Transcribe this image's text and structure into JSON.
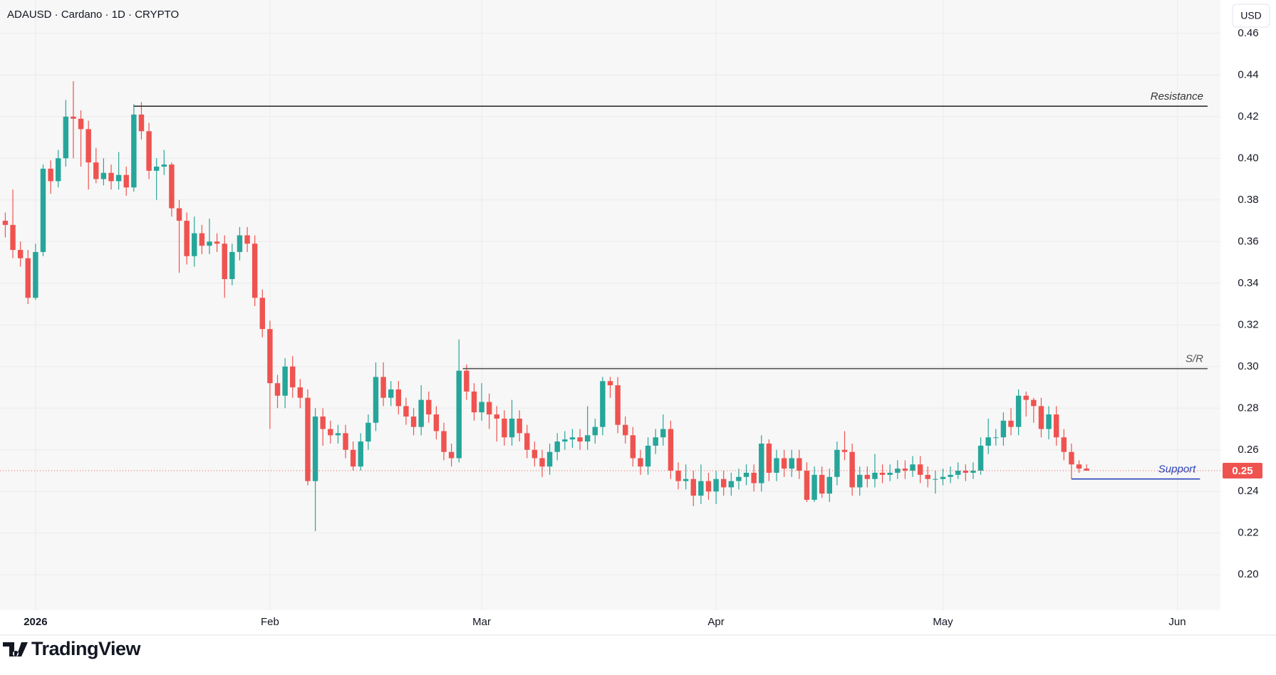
{
  "chart_data": {
    "type": "candlestick",
    "title": "ADAUSD · Cardano · 1D · CRYPTO",
    "currency": "USD",
    "brand": "TradingView",
    "up_color": "#26a69a",
    "down_color": "#ef5350",
    "grid": true,
    "xlim": [
      -4.7,
      156.7
    ],
    "xticks": [
      {
        "value": 0,
        "label": "2026"
      },
      {
        "value": 31,
        "label": "Feb"
      },
      {
        "value": 59,
        "label": "Mar"
      },
      {
        "value": 90,
        "label": "Apr"
      },
      {
        "value": 120,
        "label": "May"
      },
      {
        "value": 151,
        "label": "Jun"
      }
    ],
    "ylim": [
      0.183,
      0.476
    ],
    "yticks": [
      {
        "value": 0.2,
        "label": "0.20"
      },
      0.22,
      0.24,
      0.26,
      0.28,
      {
        "value": 0.3,
        "label": "0.30"
      },
      0.32,
      0.34,
      0.36,
      0.38,
      {
        "value": 0.4,
        "label": "0.40"
      },
      0.42,
      0.44,
      0.46
    ],
    "last_price": 0.25,
    "x": [
      -4,
      -3,
      -2,
      -1,
      0,
      1,
      2,
      3,
      4,
      5,
      6,
      7,
      8,
      9,
      10,
      11,
      12,
      13,
      14,
      15,
      16,
      17,
      18,
      19,
      20,
      21,
      22,
      23,
      24,
      25,
      26,
      27,
      28,
      29,
      30,
      31,
      32,
      33,
      34,
      35,
      36,
      37,
      38,
      39,
      40,
      41,
      42,
      43,
      44,
      45,
      46,
      47,
      48,
      49,
      50,
      51,
      52,
      53,
      54,
      55,
      56,
      57,
      58,
      59,
      60,
      61,
      62,
      63,
      64,
      65,
      66,
      67,
      68,
      69,
      70,
      71,
      72,
      73,
      74,
      75,
      76,
      77,
      78,
      79,
      80,
      81,
      82,
      83,
      84,
      85,
      86,
      87,
      88,
      89,
      90,
      91,
      92,
      93,
      94,
      95,
      96,
      97,
      98,
      99,
      100,
      101,
      102,
      103,
      104,
      105,
      106,
      107,
      108,
      109,
      110,
      111,
      112,
      113,
      114,
      115,
      116,
      117,
      118,
      119,
      120,
      121,
      122,
      123,
      124,
      125,
      126,
      127,
      128,
      129,
      130,
      131,
      132,
      133,
      134,
      135,
      136,
      137,
      138,
      139
    ],
    "open": [
      0.37,
      0.368,
      0.356,
      0.352,
      0.333,
      0.355,
      0.395,
      0.389,
      0.4,
      0.42,
      0.419,
      0.414,
      0.398,
      0.39,
      0.393,
      0.389,
      0.392,
      0.386,
      0.421,
      0.413,
      0.394,
      0.396,
      0.397,
      0.376,
      0.37,
      0.353,
      0.364,
      0.358,
      0.36,
      0.359,
      0.342,
      0.355,
      0.363,
      0.359,
      0.333,
      0.318,
      0.292,
      0.286,
      0.3,
      0.29,
      0.285,
      0.245,
      0.276,
      0.27,
      0.267,
      0.268,
      0.26,
      0.252,
      0.264,
      0.273,
      0.295,
      0.285,
      0.289,
      0.281,
      0.276,
      0.271,
      0.284,
      0.277,
      0.269,
      0.259,
      0.256,
      0.298,
      0.288,
      0.278,
      0.283,
      0.277,
      0.275,
      0.266,
      0.275,
      0.268,
      0.26,
      0.256,
      0.252,
      0.259,
      0.264,
      0.265,
      0.266,
      0.264,
      0.267,
      0.271,
      0.293,
      0.291,
      0.272,
      0.267,
      0.256,
      0.252,
      0.262,
      0.266,
      0.27,
      0.25,
      0.245,
      0.246,
      0.238,
      0.245,
      0.24,
      0.246,
      0.242,
      0.245,
      0.247,
      0.249,
      0.244,
      0.263,
      0.249,
      0.256,
      0.251,
      0.256,
      0.25,
      0.236,
      0.248,
      0.239,
      0.247,
      0.26,
      0.259,
      0.242,
      0.248,
      0.246,
      0.249,
      0.248,
      0.249,
      0.251,
      0.25,
      0.253,
      0.248,
      0.246,
      0.246,
      0.247,
      0.248,
      0.25,
      0.249,
      0.25,
      0.262,
      0.266,
      0.266,
      0.274,
      0.271,
      0.286,
      0.284,
      0.281,
      0.27,
      0.277,
      0.266,
      0.259,
      0.253,
      0.251
    ],
    "high": [
      0.374,
      0.385,
      0.36,
      0.356,
      0.359,
      0.397,
      0.399,
      0.404,
      0.428,
      0.437,
      0.423,
      0.418,
      0.405,
      0.4,
      0.397,
      0.403,
      0.396,
      0.426,
      0.427,
      0.417,
      0.4,
      0.404,
      0.398,
      0.38,
      0.374,
      0.372,
      0.368,
      0.371,
      0.364,
      0.363,
      0.359,
      0.367,
      0.367,
      0.363,
      0.337,
      0.322,
      0.296,
      0.304,
      0.305,
      0.294,
      0.289,
      0.28,
      0.28,
      0.274,
      0.272,
      0.272,
      0.264,
      0.268,
      0.277,
      0.302,
      0.302,
      0.293,
      0.293,
      0.285,
      0.28,
      0.291,
      0.288,
      0.281,
      0.273,
      0.263,
      0.313,
      0.301,
      0.292,
      0.292,
      0.287,
      0.281,
      0.279,
      0.284,
      0.279,
      0.272,
      0.264,
      0.26,
      0.263,
      0.268,
      0.269,
      0.27,
      0.27,
      0.281,
      0.275,
      0.295,
      0.295,
      0.295,
      0.276,
      0.271,
      0.26,
      0.266,
      0.27,
      0.277,
      0.274,
      0.254,
      0.253,
      0.25,
      0.253,
      0.249,
      0.25,
      0.25,
      0.249,
      0.251,
      0.253,
      0.253,
      0.267,
      0.265,
      0.26,
      0.26,
      0.26,
      0.26,
      0.254,
      0.252,
      0.252,
      0.251,
      0.264,
      0.269,
      0.263,
      0.252,
      0.252,
      0.258,
      0.253,
      0.253,
      0.255,
      0.255,
      0.257,
      0.257,
      0.252,
      0.25,
      0.251,
      0.252,
      0.254,
      0.253,
      0.254,
      0.266,
      0.275,
      0.27,
      0.278,
      0.28,
      0.289,
      0.288,
      0.285,
      0.285,
      0.281,
      0.281,
      0.27,
      0.263,
      0.255,
      0.253
    ],
    "low": [
      0.362,
      0.352,
      0.348,
      0.33,
      0.332,
      0.353,
      0.383,
      0.386,
      0.396,
      0.4,
      0.396,
      0.385,
      0.388,
      0.387,
      0.385,
      0.385,
      0.382,
      0.384,
      0.409,
      0.39,
      0.38,
      0.392,
      0.372,
      0.345,
      0.349,
      0.348,
      0.354,
      0.354,
      0.355,
      0.333,
      0.339,
      0.351,
      0.355,
      0.329,
      0.314,
      0.27,
      0.28,
      0.28,
      0.285,
      0.28,
      0.243,
      0.221,
      0.262,
      0.263,
      0.263,
      0.256,
      0.25,
      0.25,
      0.26,
      0.269,
      0.281,
      0.281,
      0.277,
      0.272,
      0.267,
      0.267,
      0.273,
      0.265,
      0.255,
      0.252,
      0.254,
      0.284,
      0.274,
      0.274,
      0.27,
      0.264,
      0.262,
      0.262,
      0.264,
      0.256,
      0.252,
      0.247,
      0.248,
      0.255,
      0.26,
      0.261,
      0.26,
      0.26,
      0.263,
      0.267,
      0.285,
      0.268,
      0.263,
      0.252,
      0.248,
      0.248,
      0.258,
      0.262,
      0.246,
      0.241,
      0.241,
      0.233,
      0.234,
      0.236,
      0.234,
      0.238,
      0.238,
      0.241,
      0.243,
      0.24,
      0.24,
      0.245,
      0.245,
      0.247,
      0.247,
      0.246,
      0.235,
      0.235,
      0.237,
      0.235,
      0.243,
      0.255,
      0.238,
      0.238,
      0.242,
      0.242,
      0.244,
      0.245,
      0.246,
      0.246,
      0.247,
      0.244,
      0.242,
      0.239,
      0.243,
      0.244,
      0.246,
      0.245,
      0.246,
      0.248,
      0.258,
      0.262,
      0.262,
      0.267,
      0.267,
      0.276,
      0.273,
      0.266,
      0.265,
      0.262,
      0.255,
      0.246,
      0.249,
      0.25
    ],
    "close": [
      0.368,
      0.356,
      0.352,
      0.333,
      0.355,
      0.395,
      0.389,
      0.4,
      0.42,
      0.419,
      0.414,
      0.398,
      0.39,
      0.393,
      0.389,
      0.392,
      0.386,
      0.421,
      0.413,
      0.394,
      0.396,
      0.397,
      0.376,
      0.37,
      0.353,
      0.364,
      0.358,
      0.36,
      0.359,
      0.342,
      0.355,
      0.363,
      0.359,
      0.333,
      0.318,
      0.292,
      0.286,
      0.3,
      0.29,
      0.285,
      0.245,
      0.276,
      0.27,
      0.267,
      0.268,
      0.26,
      0.252,
      0.264,
      0.273,
      0.295,
      0.285,
      0.289,
      0.281,
      0.276,
      0.271,
      0.284,
      0.277,
      0.269,
      0.259,
      0.256,
      0.298,
      0.288,
      0.278,
      0.283,
      0.277,
      0.275,
      0.266,
      0.275,
      0.268,
      0.26,
      0.256,
      0.252,
      0.259,
      0.264,
      0.265,
      0.266,
      0.264,
      0.267,
      0.271,
      0.293,
      0.291,
      0.272,
      0.267,
      0.256,
      0.252,
      0.262,
      0.266,
      0.27,
      0.25,
      0.245,
      0.246,
      0.238,
      0.245,
      0.24,
      0.246,
      0.242,
      0.245,
      0.247,
      0.249,
      0.244,
      0.263,
      0.249,
      0.256,
      0.251,
      0.256,
      0.25,
      0.236,
      0.248,
      0.239,
      0.247,
      0.26,
      0.259,
      0.242,
      0.248,
      0.246,
      0.249,
      0.248,
      0.249,
      0.251,
      0.25,
      0.253,
      0.248,
      0.246,
      0.246,
      0.247,
      0.248,
      0.25,
      0.249,
      0.25,
      0.262,
      0.266,
      0.266,
      0.274,
      0.271,
      0.286,
      0.284,
      0.281,
      0.27,
      0.277,
      0.266,
      0.259,
      0.253,
      0.251,
      0.25
    ],
    "levels": [
      {
        "label": "Resistance",
        "value": 0.425,
        "from": 13,
        "to": 155,
        "color": "#333333"
      },
      {
        "label": "S/R",
        "value": 0.299,
        "from": 56.5,
        "to": 155,
        "color": "#555555"
      },
      {
        "label": "Support",
        "value": 0.246,
        "from": 137,
        "to": 154,
        "color": "#2a44b8"
      }
    ]
  }
}
